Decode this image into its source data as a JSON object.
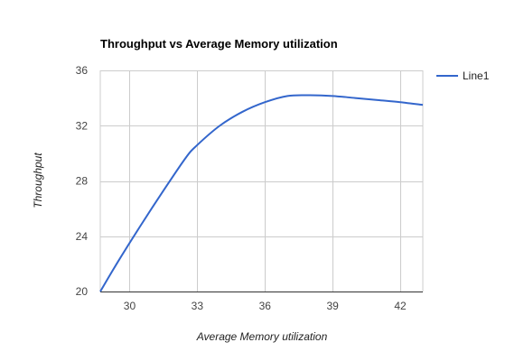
{
  "chart_data": {
    "type": "line",
    "title": "Throughput vs Average Memory utilization",
    "xlabel": "Average Memory utilization",
    "ylabel": "Throughput",
    "xlim": [
      28.7,
      43
    ],
    "ylim": [
      20,
      36
    ],
    "x_ticks": [
      30,
      33,
      36,
      39,
      42
    ],
    "y_ticks": [
      20,
      24,
      28,
      32,
      36
    ],
    "grid": true,
    "legend_position": "right-top",
    "series": [
      {
        "name": "Line1",
        "color": "#3366cc",
        "x": [
          28.7,
          29.5,
          30.5,
          31.5,
          32.5,
          33,
          34,
          35,
          36,
          37,
          38,
          39,
          40,
          41,
          42,
          43
        ],
        "y": [
          20.0,
          22.2,
          24.8,
          27.3,
          29.7,
          30.6,
          32.0,
          33.0,
          33.7,
          34.15,
          34.2,
          34.15,
          34.0,
          33.85,
          33.7,
          33.5
        ]
      }
    ]
  }
}
